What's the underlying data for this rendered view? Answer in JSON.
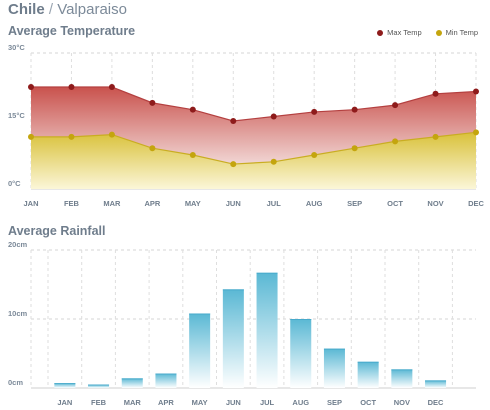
{
  "header": {
    "country": "Chile",
    "separator": "/",
    "city": "Valparaiso"
  },
  "temperature": {
    "title": "Average Temperature",
    "legend": {
      "max_label": "Max Temp",
      "min_label": "Min Temp"
    },
    "colors": {
      "max": "#8e1b1b",
      "min": "#c4a50e",
      "max_fill_top": "#c9524d",
      "min_fill_top": "#d9c13a"
    },
    "chart_data": {
      "type": "area",
      "categories": [
        "JAN",
        "FEB",
        "MAR",
        "APR",
        "MAY",
        "JUN",
        "JUL",
        "AUG",
        "SEP",
        "OCT",
        "NOV",
        "DEC"
      ],
      "series": [
        {
          "name": "Max Temp",
          "values": [
            22.5,
            22.5,
            22.5,
            19,
            17.5,
            15,
            16,
            17,
            17.5,
            18.5,
            21,
            21.5
          ]
        },
        {
          "name": "Min Temp",
          "values": [
            11.5,
            11.5,
            12,
            9,
            7.5,
            5.5,
            6,
            7.5,
            9,
            10.5,
            11.5,
            12.5
          ]
        }
      ],
      "yticks": [
        "0°C",
        "15°C",
        "30°C"
      ],
      "ylim": [
        0,
        30
      ],
      "grid": true,
      "legend_position": "top-right"
    }
  },
  "rainfall": {
    "title": "Average Rainfall",
    "colors": {
      "bar_top": "#5ab8d4",
      "bar_bottom": "#ffffff",
      "bar_edge": "#48aacb"
    },
    "chart_data": {
      "type": "bar",
      "categories": [
        "JAN",
        "FEB",
        "MAR",
        "APR",
        "MAY",
        "JUN",
        "JUL",
        "AUG",
        "SEP",
        "OCT",
        "NOV",
        "DEC"
      ],
      "values": [
        0.7,
        0.5,
        1.4,
        2.1,
        10.8,
        14.3,
        16.7,
        10,
        5.7,
        3.8,
        2.7,
        1.1
      ],
      "yticks": [
        "0cm",
        "10cm",
        "20cm"
      ],
      "ylim": [
        0,
        20
      ],
      "grid": true
    }
  }
}
